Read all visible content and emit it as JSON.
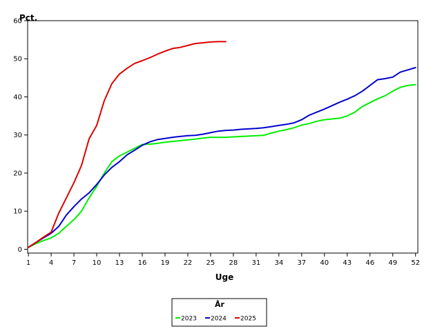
{
  "chart_data": {
    "type": "line",
    "title": "",
    "xlabel": "Uge",
    "ylabel": "Pct.",
    "xlim": [
      0.9,
      52.3
    ],
    "ylim": [
      -1,
      60
    ],
    "xticks": [
      1,
      4,
      7,
      10,
      13,
      16,
      19,
      22,
      25,
      28,
      31,
      34,
      37,
      40,
      43,
      46,
      49,
      52
    ],
    "yticks": [
      0,
      10,
      20,
      30,
      40,
      50,
      60
    ],
    "grid": false,
    "legend": {
      "title": "År",
      "placement": "bottom-center"
    },
    "series": [
      {
        "name": "2023",
        "color": "#00ee00",
        "x": [
          1,
          2,
          3,
          4,
          5,
          6,
          7,
          8,
          9,
          10,
          11,
          12,
          13,
          14,
          15,
          16,
          17,
          18,
          19,
          20,
          21,
          22,
          23,
          24,
          25,
          26,
          27,
          28,
          29,
          30,
          31,
          32,
          33,
          34,
          35,
          36,
          37,
          38,
          39,
          40,
          41,
          42,
          43,
          44,
          45,
          46,
          47,
          48,
          49,
          50,
          51,
          52
        ],
        "values": [
          0.5,
          1.5,
          2.3,
          3.0,
          4.2,
          6.0,
          7.8,
          10.0,
          13.5,
          16.5,
          20.0,
          23.0,
          24.5,
          25.5,
          26.5,
          27.5,
          27.6,
          27.8,
          28.1,
          28.3,
          28.5,
          28.7,
          28.9,
          29.2,
          29.4,
          29.4,
          29.4,
          29.5,
          29.6,
          29.7,
          29.8,
          29.9,
          30.5,
          31.0,
          31.4,
          31.9,
          32.6,
          33.0,
          33.6,
          34.0,
          34.2,
          34.4,
          35.0,
          36.0,
          37.5,
          38.5,
          39.5,
          40.3,
          41.5,
          42.5,
          43.0,
          43.2
        ]
      },
      {
        "name": "2024",
        "color": "#0000cc",
        "x": [
          1,
          2,
          3,
          4,
          5,
          6,
          7,
          8,
          9,
          10,
          11,
          12,
          13,
          14,
          15,
          16,
          17,
          18,
          19,
          20,
          21,
          22,
          23,
          24,
          25,
          26,
          27,
          28,
          29,
          30,
          31,
          32,
          33,
          34,
          35,
          36,
          37,
          38,
          39,
          40,
          41,
          42,
          43,
          44,
          45,
          46,
          47,
          48,
          49,
          50,
          51,
          52
        ],
        "values": [
          0.5,
          1.8,
          3.0,
          4.2,
          6.0,
          9.0,
          11.2,
          13.2,
          14.8,
          17.0,
          19.5,
          21.5,
          23.0,
          24.8,
          26.0,
          27.3,
          28.2,
          28.8,
          29.1,
          29.4,
          29.6,
          29.8,
          29.9,
          30.2,
          30.6,
          31.0,
          31.2,
          31.3,
          31.5,
          31.6,
          31.7,
          31.9,
          32.2,
          32.5,
          32.8,
          33.2,
          34.0,
          35.2,
          36.0,
          36.8,
          37.7,
          38.6,
          39.4,
          40.3,
          41.5,
          43.0,
          44.5,
          44.8,
          45.2,
          46.5,
          47.1,
          47.7
        ]
      },
      {
        "name": "2025",
        "color": "#dd0000",
        "x": [
          1,
          2,
          3,
          4,
          5,
          6,
          7,
          8,
          9,
          10,
          11,
          12,
          13,
          14,
          15,
          16,
          17,
          18,
          19,
          20,
          21,
          22,
          23,
          24,
          25,
          26,
          27
        ],
        "values": [
          0.5,
          1.8,
          3.2,
          4.5,
          9.5,
          13.5,
          17.5,
          22.0,
          29.0,
          32.5,
          39.0,
          43.5,
          46.0,
          47.5,
          48.8,
          49.5,
          50.3,
          51.2,
          52.0,
          52.7,
          53.0,
          53.5,
          54.0,
          54.2,
          54.4,
          54.5,
          54.5
        ]
      }
    ]
  }
}
